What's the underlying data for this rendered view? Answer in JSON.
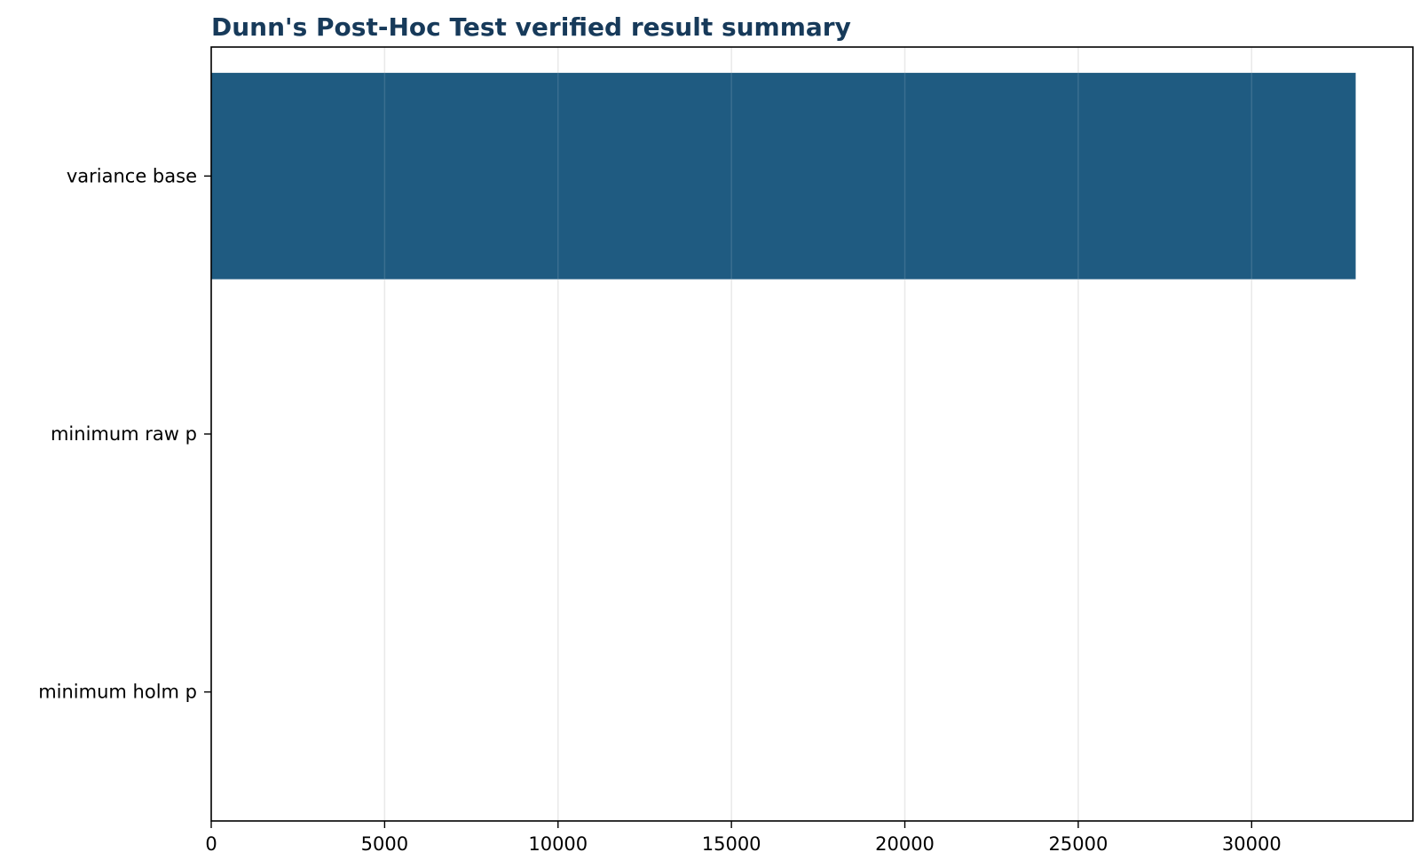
{
  "chart_data": {
    "type": "bar",
    "orientation": "horizontal",
    "title": "Dunn's Post-Hoc Test verified result summary",
    "xlabel": "",
    "ylabel": "",
    "categories": [
      "variance base",
      "minimum raw p",
      "minimum holm p"
    ],
    "values": [
      33000,
      0,
      0
    ],
    "xlim": [
      0,
      34650
    ],
    "xticks": [
      0,
      5000,
      10000,
      15000,
      20000,
      25000,
      30000
    ],
    "grid": "x",
    "legend": "none",
    "bar_color": "#1f5b81",
    "title_color": "#173a5a",
    "grid_color": "#e6e6e6"
  }
}
